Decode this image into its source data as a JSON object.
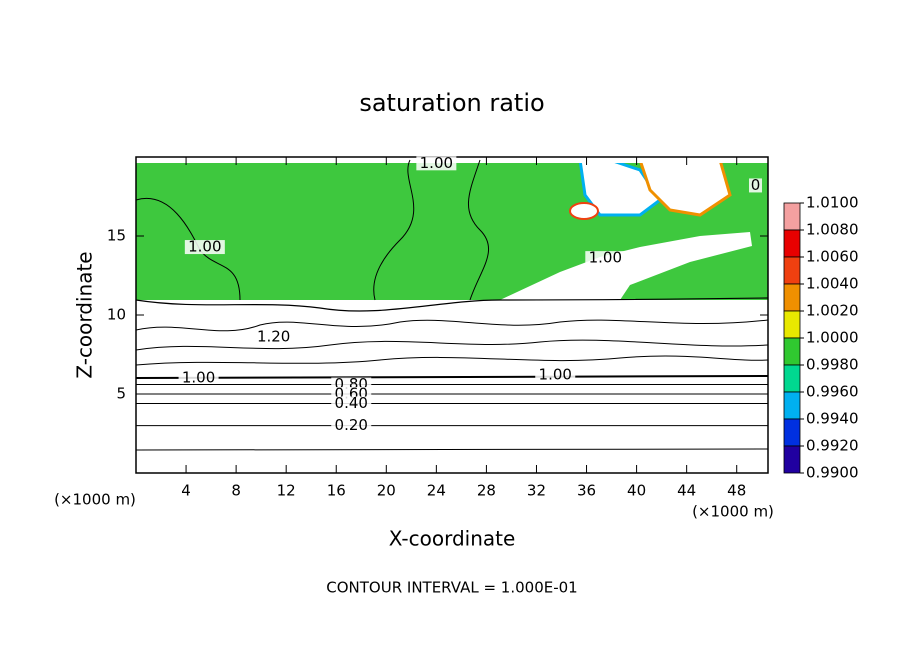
{
  "chart_data": {
    "type": "contour",
    "title": "saturation ratio",
    "x_label": "X-coordinate",
    "y_label": "Z-coordinate",
    "x_unit_label": "(×1000 m)",
    "y_unit_label": "(×1000 m)",
    "footer": "CONTOUR INTERVAL = 1.000E-01",
    "xlim": [
      0,
      50.5
    ],
    "ylim": [
      0,
      20
    ],
    "xticks": [
      4,
      8,
      12,
      16,
      20,
      24,
      28,
      32,
      36,
      40,
      44,
      48
    ],
    "yticks": [
      5,
      10,
      15
    ],
    "annotations": [
      {
        "text": "1.00",
        "x": 24,
        "y": 19.6
      },
      {
        "text": "0",
        "x": 49.5,
        "y": 18.2
      },
      {
        "text": "1.00",
        "x": 5.5,
        "y": 14.3
      },
      {
        "text": "1.00",
        "x": 37.5,
        "y": 13.6
      },
      {
        "text": "1.20",
        "x": 11,
        "y": 8.6
      },
      {
        "text": "1.00",
        "x": 5,
        "y": 6.0
      },
      {
        "text": "1.00",
        "x": 33.5,
        "y": 6.2
      },
      {
        "text": "0.80",
        "x": 17.2,
        "y": 5.6
      },
      {
        "text": "0.60",
        "x": 17.2,
        "y": 5.0
      },
      {
        "text": "0.40",
        "x": 17.2,
        "y": 4.4
      },
      {
        "text": "0.20",
        "x": 17.2,
        "y": 3.0
      }
    ],
    "colorbar": {
      "levels": [
        {
          "value": 1.01,
          "label": "1.0100"
        },
        {
          "value": 1.008,
          "label": "1.0080"
        },
        {
          "value": 1.006,
          "label": "1.0060"
        },
        {
          "value": 1.004,
          "label": "1.0040"
        },
        {
          "value": 1.002,
          "label": "1.0020"
        },
        {
          "value": 1.0,
          "label": "1.0000"
        },
        {
          "value": 0.998,
          "label": "0.9980"
        },
        {
          "value": 0.996,
          "label": "0.9960"
        },
        {
          "value": 0.994,
          "label": "0.9940"
        },
        {
          "value": 0.992,
          "label": "0.9920"
        },
        {
          "value": 0.99,
          "label": "0.9900"
        }
      ],
      "colors": [
        "#f4a0a0",
        "#e80000",
        "#f04010",
        "#f09000",
        "#e8e800",
        "#30c830",
        "#00d890",
        "#00b0f0",
        "#0030e0",
        "#2000a0"
      ]
    }
  }
}
